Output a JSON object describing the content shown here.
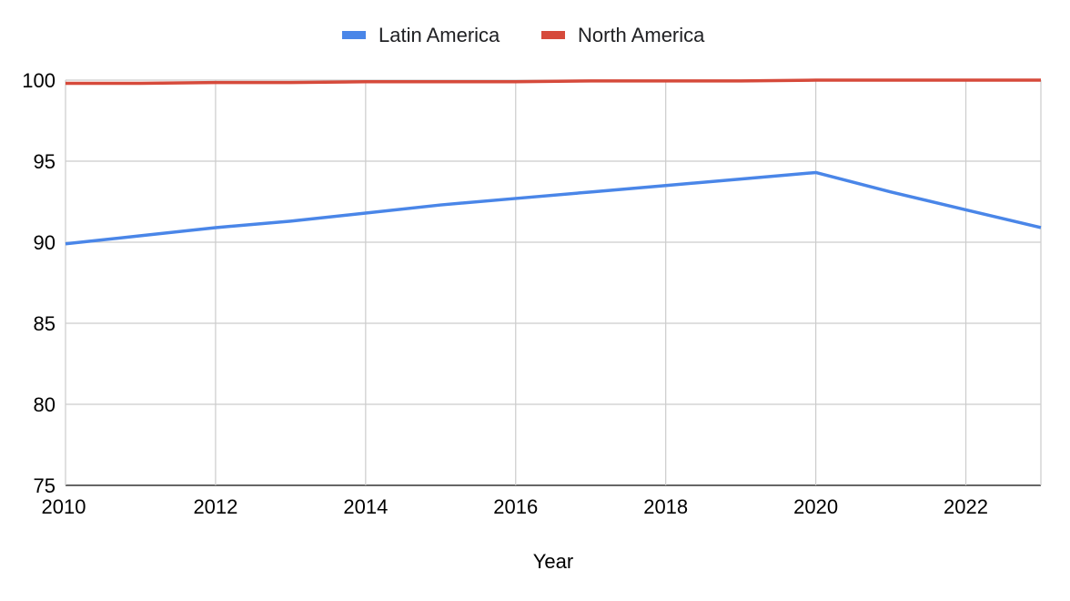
{
  "chart_data": {
    "type": "line",
    "title": "",
    "xlabel": "Year",
    "ylabel": "",
    "x": [
      2010,
      2011,
      2012,
      2013,
      2014,
      2015,
      2016,
      2017,
      2018,
      2019,
      2020,
      2021,
      2022,
      2023
    ],
    "xlim": [
      2010,
      2023
    ],
    "ylim": [
      75,
      100
    ],
    "x_ticks": [
      2010,
      2012,
      2014,
      2016,
      2018,
      2020,
      2022
    ],
    "y_ticks": [
      75,
      80,
      85,
      90,
      95,
      100
    ],
    "x_tick_labels": [
      "2010",
      "2012",
      "2014",
      "2016",
      "2018",
      "2020",
      "2022"
    ],
    "y_tick_labels": [
      "75",
      "80",
      "85",
      "90",
      "95",
      "100"
    ],
    "grid": true,
    "legend_position": "top",
    "series": [
      {
        "name": "Latin America",
        "color": "#4a86e8",
        "values": [
          89.9,
          90.4,
          90.9,
          91.3,
          91.8,
          92.3,
          92.7,
          93.1,
          93.5,
          93.9,
          94.3,
          93.1,
          92.0,
          90.9
        ]
      },
      {
        "name": "North America",
        "color": "#d64a3b",
        "values": [
          99.8,
          99.8,
          99.85,
          99.85,
          99.9,
          99.9,
          99.9,
          99.95,
          99.95,
          99.95,
          100,
          100,
          100,
          100
        ]
      }
    ]
  }
}
